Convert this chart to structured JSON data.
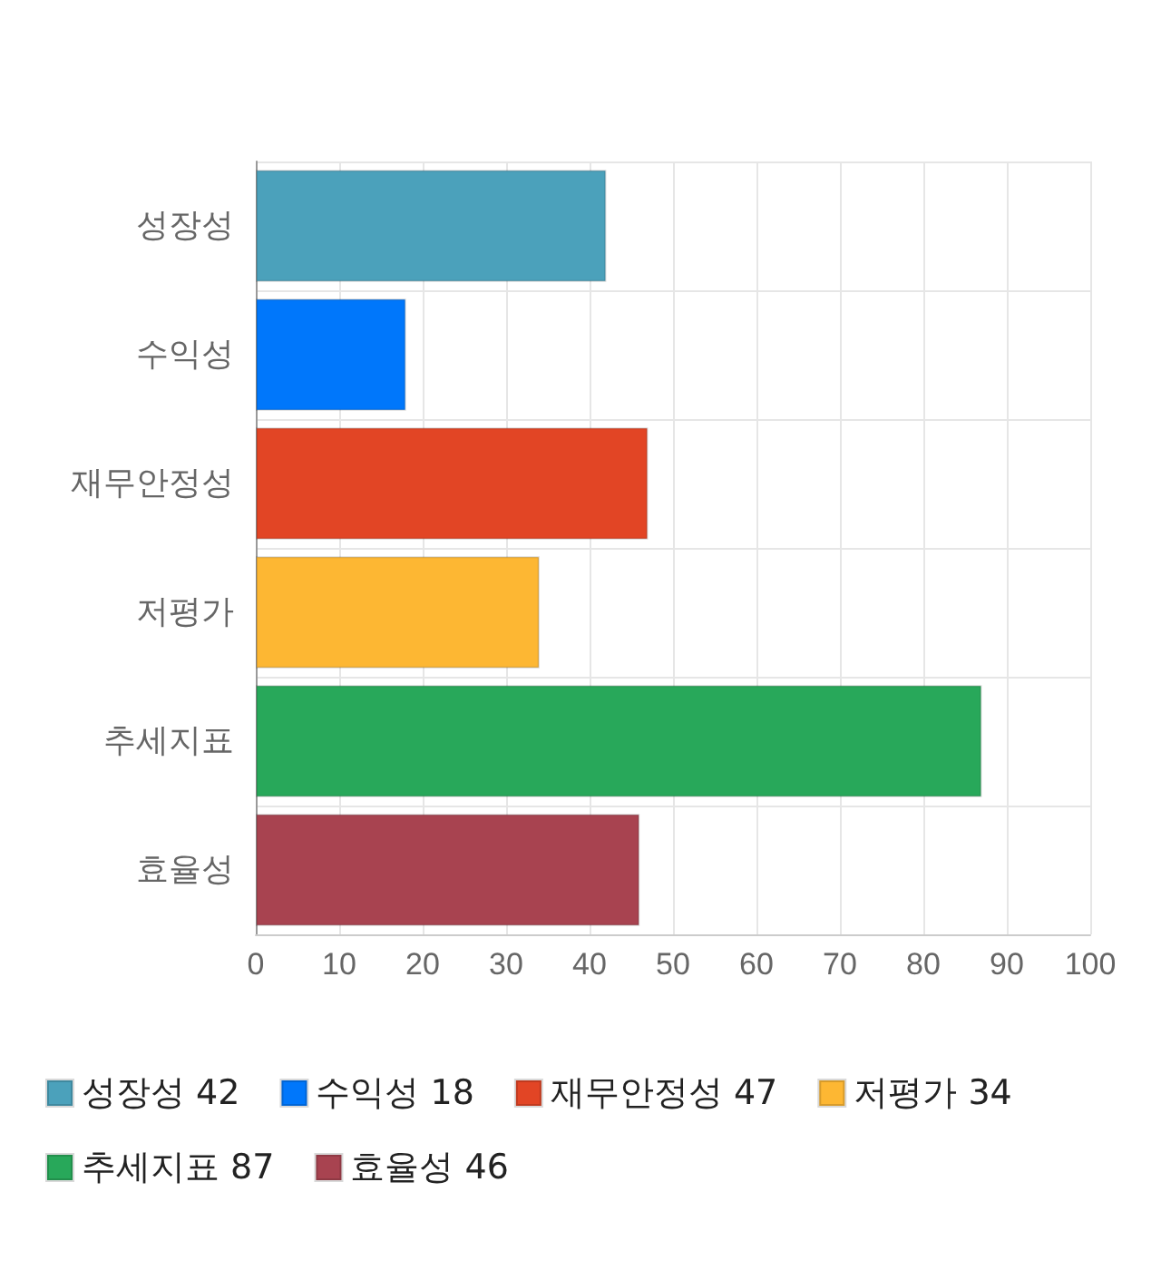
{
  "chart_data": {
    "type": "bar",
    "orientation": "horizontal",
    "stacked": true,
    "categories": [
      "성장성",
      "수익성",
      "재무안정성",
      "저평가",
      "추세지표",
      "효율성"
    ],
    "series": [
      {
        "name": "성장성 42",
        "color": "#4ba1bb",
        "values": [
          42,
          null,
          null,
          null,
          null,
          null
        ]
      },
      {
        "name": "수익성 18",
        "color": "#0077fb",
        "values": [
          null,
          18,
          null,
          null,
          null,
          null
        ]
      },
      {
        "name": "재무안정성 47",
        "color": "#e24525",
        "values": [
          null,
          null,
          47,
          null,
          null,
          null
        ]
      },
      {
        "name": "저평가 34",
        "color": "#fdb733",
        "values": [
          null,
          null,
          null,
          34,
          null,
          null
        ]
      },
      {
        "name": "추세지표 87",
        "color": "#28a85a",
        "values": [
          null,
          null,
          null,
          null,
          87,
          null
        ]
      },
      {
        "name": "효율성 46",
        "color": "#a84350",
        "values": [
          null,
          null,
          null,
          null,
          null,
          46
        ]
      }
    ],
    "xlim": [
      0,
      100
    ],
    "xticks": [
      0,
      10,
      20,
      30,
      40,
      50,
      60,
      70,
      80,
      90,
      100
    ],
    "grid": true,
    "legend": "bottom"
  }
}
